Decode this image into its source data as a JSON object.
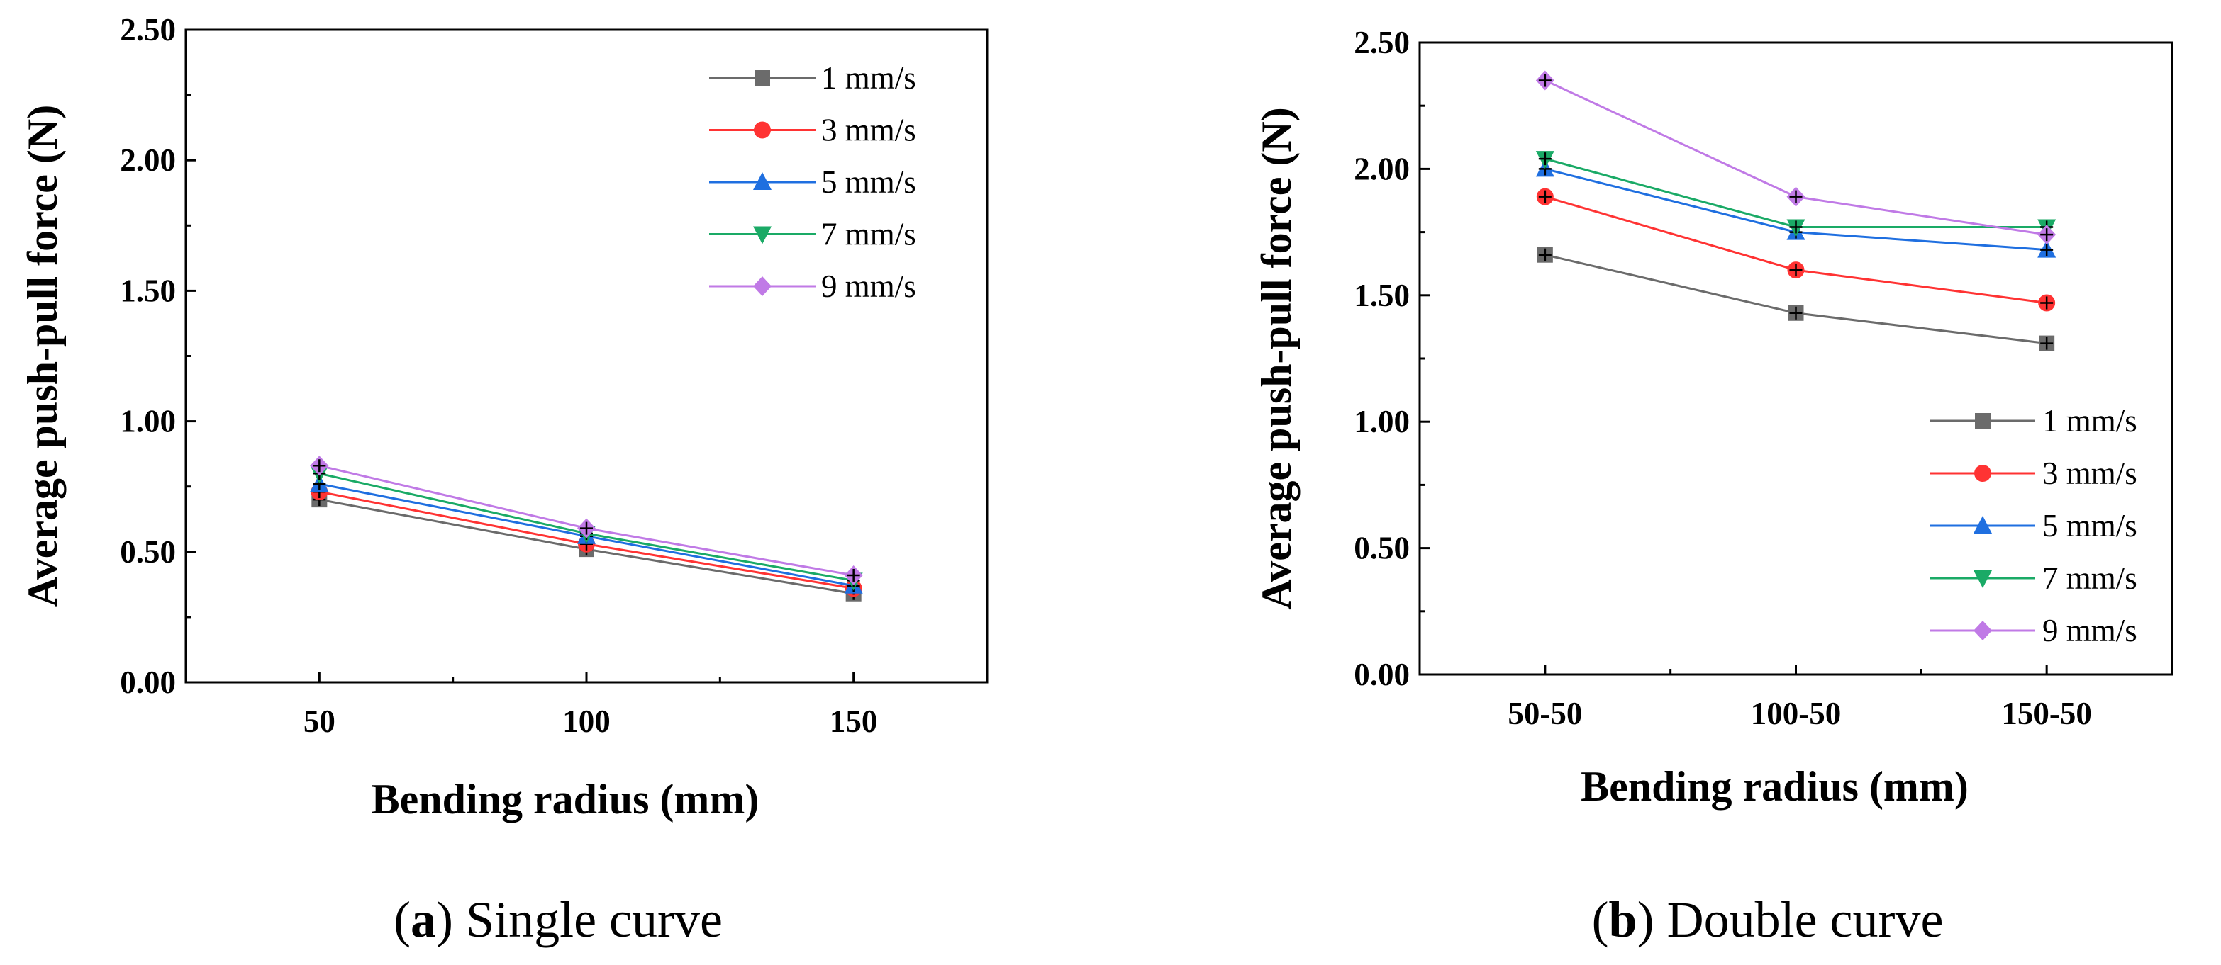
{
  "chart_data": [
    {
      "type": "line",
      "caption_letter": "a",
      "caption_text": "Single curve",
      "xlabel": "Bending radius (mm)",
      "ylabel": "Average push-pull force (N)",
      "categories": [
        "50",
        "100",
        "150"
      ],
      "x_range": [
        0,
        3
      ],
      "ylim": [
        0,
        2.5
      ],
      "y_ticks": [
        "0.00",
        "0.50",
        "1.00",
        "1.50",
        "2.00",
        "2.50"
      ],
      "legend_position": "top-right",
      "series": [
        {
          "name": "1 mm/s",
          "color": "#6b6b6b",
          "marker": "square",
          "values": [
            0.7,
            0.51,
            0.34
          ]
        },
        {
          "name": "3 mm/s",
          "color": "#ff3333",
          "marker": "circle",
          "values": [
            0.73,
            0.53,
            0.36
          ]
        },
        {
          "name": "5 mm/s",
          "color": "#1f6fe0",
          "marker": "triangle-up",
          "values": [
            0.76,
            0.56,
            0.37
          ]
        },
        {
          "name": "7 mm/s",
          "color": "#1aaa66",
          "marker": "triangle-down",
          "values": [
            0.8,
            0.57,
            0.39
          ]
        },
        {
          "name": "9 mm/s",
          "color": "#c07ae6",
          "marker": "diamond",
          "values": [
            0.83,
            0.59,
            0.41
          ]
        }
      ]
    },
    {
      "type": "line",
      "caption_letter": "b",
      "caption_text": "Double curve",
      "xlabel": "Bending radius (mm)",
      "ylabel": "Average push-pull force (N)",
      "categories": [
        "50-50",
        "100-50",
        "150-50"
      ],
      "x_range": [
        0,
        3
      ],
      "ylim": [
        0,
        2.5
      ],
      "y_ticks": [
        "0.00",
        "0.50",
        "1.00",
        "1.50",
        "2.00",
        "2.50"
      ],
      "legend_position": "bottom-right",
      "series": [
        {
          "name": "1 mm/s",
          "color": "#6b6b6b",
          "marker": "square",
          "values": [
            1.66,
            1.43,
            1.31
          ]
        },
        {
          "name": "3 mm/s",
          "color": "#ff3333",
          "marker": "circle",
          "values": [
            1.89,
            1.6,
            1.47
          ]
        },
        {
          "name": "5 mm/s",
          "color": "#1f6fe0",
          "marker": "triangle-up",
          "values": [
            2.0,
            1.75,
            1.68
          ]
        },
        {
          "name": "7 mm/s",
          "color": "#1aaa66",
          "marker": "triangle-down",
          "values": [
            2.04,
            1.77,
            1.77
          ]
        },
        {
          "name": "9 mm/s",
          "color": "#c07ae6",
          "marker": "diamond",
          "values": [
            2.35,
            1.89,
            1.74
          ]
        }
      ]
    }
  ]
}
